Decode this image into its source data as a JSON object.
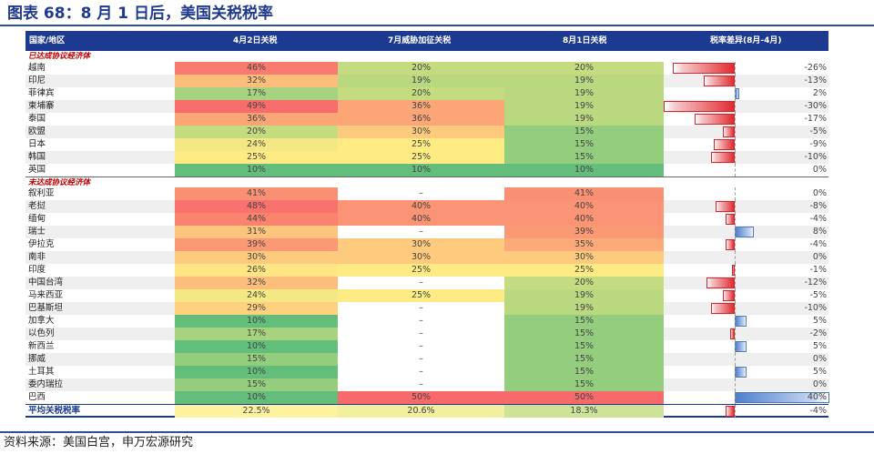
{
  "title": "图表 68：8 月 1 日后，美国关税税率",
  "headers": {
    "country": "国家/地区",
    "apr2": "4月2日关税",
    "jul": "7月威胁加征关税",
    "aug1": "8月1日关税",
    "diff": "税率差异(8月-4月)"
  },
  "sections": [
    {
      "label": "已达成协议经济体",
      "rows": [
        {
          "name": "越南",
          "apr": "46%",
          "jul": "20%",
          "aug": "20%",
          "diff": "-26%",
          "d": -26
        },
        {
          "name": "印尼",
          "apr": "32%",
          "jul": "19%",
          "aug": "19%",
          "diff": "-13%",
          "d": -13
        },
        {
          "name": "菲律宾",
          "apr": "17%",
          "jul": "20%",
          "aug": "19%",
          "diff": "2%",
          "d": 2
        },
        {
          "name": "柬埔寨",
          "apr": "49%",
          "jul": "36%",
          "aug": "19%",
          "diff": "-30%",
          "d": -30
        },
        {
          "name": "泰国",
          "apr": "36%",
          "jul": "36%",
          "aug": "19%",
          "diff": "-17%",
          "d": -17
        },
        {
          "name": "欧盟",
          "apr": "20%",
          "jul": "30%",
          "aug": "15%",
          "diff": "-5%",
          "d": -5
        },
        {
          "name": "日本",
          "apr": "24%",
          "jul": "25%",
          "aug": "15%",
          "diff": "-9%",
          "d": -9
        },
        {
          "name": "韩国",
          "apr": "25%",
          "jul": "25%",
          "aug": "15%",
          "diff": "-10%",
          "d": -10
        },
        {
          "name": "英国",
          "apr": "10%",
          "jul": "10%",
          "aug": "10%",
          "diff": "0%",
          "d": 0
        }
      ]
    },
    {
      "label": "未达成协议经济体",
      "rows": [
        {
          "name": "叙利亚",
          "apr": "41%",
          "jul": "–",
          "aug": "41%",
          "diff": "0%",
          "d": 0
        },
        {
          "name": "老挝",
          "apr": "48%",
          "jul": "40%",
          "aug": "40%",
          "diff": "-8%",
          "d": -8
        },
        {
          "name": "缅甸",
          "apr": "44%",
          "jul": "40%",
          "aug": "40%",
          "diff": "-4%",
          "d": -4
        },
        {
          "name": "瑞士",
          "apr": "31%",
          "jul": "–",
          "aug": "39%",
          "diff": "8%",
          "d": 8
        },
        {
          "name": "伊拉克",
          "apr": "39%",
          "jul": "30%",
          "aug": "35%",
          "diff": "-4%",
          "d": -4
        },
        {
          "name": "南非",
          "apr": "30%",
          "jul": "30%",
          "aug": "30%",
          "diff": "0%",
          "d": 0
        },
        {
          "name": "印度",
          "apr": "26%",
          "jul": "25%",
          "aug": "25%",
          "diff": "-1%",
          "d": -1
        },
        {
          "name": "中国台湾",
          "apr": "32%",
          "jul": "–",
          "aug": "20%",
          "diff": "-12%",
          "d": -12
        },
        {
          "name": "马来西亚",
          "apr": "24%",
          "jul": "25%",
          "aug": "19%",
          "diff": "-5%",
          "d": -5
        },
        {
          "name": "巴基斯坦",
          "apr": "29%",
          "jul": "–",
          "aug": "19%",
          "diff": "-10%",
          "d": -10
        },
        {
          "name": "加拿大",
          "apr": "10%",
          "jul": "–",
          "aug": "15%",
          "diff": "5%",
          "d": 5
        },
        {
          "name": "以色列",
          "apr": "17%",
          "jul": "–",
          "aug": "15%",
          "diff": "-2%",
          "d": -2
        },
        {
          "name": "新西兰",
          "apr": "10%",
          "jul": "–",
          "aug": "15%",
          "diff": "5%",
          "d": 5
        },
        {
          "name": "挪威",
          "apr": "15%",
          "jul": "–",
          "aug": "15%",
          "diff": "0%",
          "d": 0
        },
        {
          "name": "土耳其",
          "apr": "10%",
          "jul": "–",
          "aug": "15%",
          "diff": "5%",
          "d": 5
        },
        {
          "name": "委内瑞拉",
          "apr": "15%",
          "jul": "–",
          "aug": "15%",
          "diff": "0%",
          "d": 0
        },
        {
          "name": "巴西",
          "apr": "10%",
          "jul": "50%",
          "aug": "50%",
          "diff": "40%",
          "d": 40
        }
      ]
    }
  ],
  "average": {
    "name": "平均关税税率",
    "apr": "22.5%",
    "jul": "20.6%",
    "aug": "18.3%",
    "diff": "-4%",
    "d": -4
  },
  "source": "资料来源：美国白宫，申万宏源研究",
  "colors": {
    "header_bg": "#1c3a8f",
    "neg_bar": "#e02a2f",
    "pos_bar": "#4e7fce"
  }
}
